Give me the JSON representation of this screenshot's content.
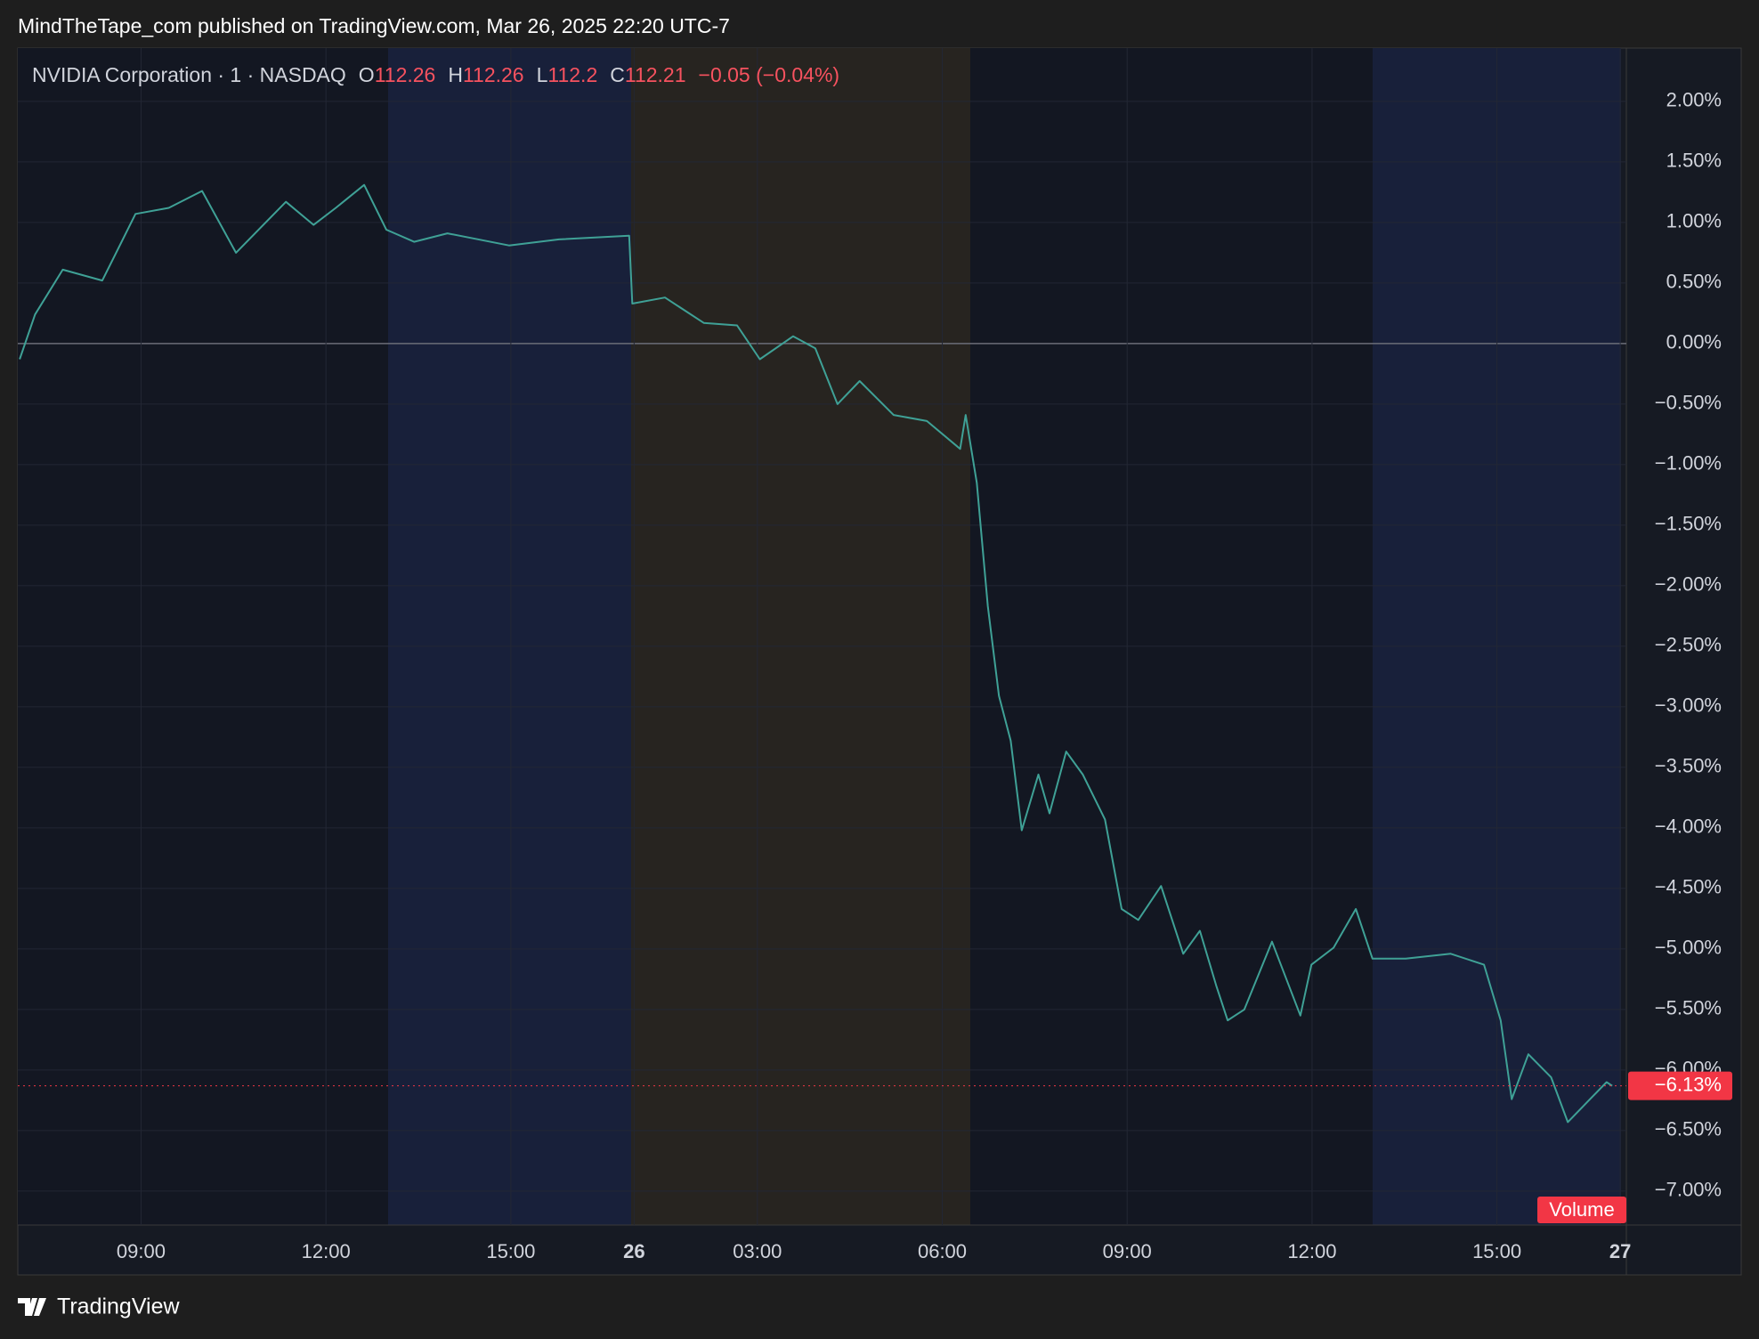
{
  "header": {
    "title": "MindTheTape_com published on TradingView.com, Mar 26, 2025 22:20 UTC-7"
  },
  "legend": {
    "symbol": "NVIDIA Corporation · 1 · NASDAQ",
    "ohlc": [
      {
        "key": "O",
        "value": 112.26
      },
      {
        "key": "H",
        "value": 112.26
      },
      {
        "key": "L",
        "value": 112.2
      },
      {
        "key": "C",
        "value": 112.21
      }
    ],
    "change": "−0.05 (−0.04%)"
  },
  "footer": {
    "brand": "TradingView"
  },
  "chart_data": {
    "type": "line",
    "color": "#3fa196",
    "x": [
      7.03,
      7.28,
      7.73,
      8.37,
      8.91,
      9.45,
      9.99,
      10.54,
      11.35,
      11.8,
      12.16,
      12.62,
      12.98,
      13.43,
      13.97,
      14.97,
      15.78,
      16.92,
      16.97,
      17.5,
      18.13,
      18.67,
      19.04,
      19.58,
      19.94,
      20.3,
      20.66,
      21.21,
      21.75,
      22.29,
      22.38,
      22.56,
      22.74,
      22.92,
      23.11,
      23.29,
      23.56,
      23.74,
      24.01,
      24.28,
      24.64,
      24.91,
      25.18,
      25.55,
      25.91,
      26.18,
      26.45,
      26.63,
      26.9,
      27.35,
      27.81,
      27.99,
      28.35,
      28.71,
      28.98,
      29.52,
      30.25,
      30.79,
      31.06,
      31.24,
      31.51,
      31.88,
      32.15,
      32.51,
      32.78,
      32.87
    ],
    "values": [
      -0.13,
      0.24,
      0.61,
      0.52,
      1.07,
      1.12,
      1.26,
      0.75,
      1.17,
      0.98,
      1.12,
      1.31,
      0.94,
      0.84,
      0.91,
      0.81,
      0.86,
      0.89,
      0.33,
      0.38,
      0.17,
      0.15,
      -0.13,
      0.06,
      -0.04,
      -0.5,
      -0.31,
      -0.59,
      -0.64,
      -0.87,
      -0.59,
      -1.15,
      -2.17,
      -2.91,
      -3.28,
      -4.02,
      -3.56,
      -3.88,
      -3.37,
      -3.56,
      -3.93,
      -4.67,
      -4.76,
      -4.48,
      -5.04,
      -4.85,
      -5.31,
      -5.59,
      -5.5,
      -4.94,
      -5.55,
      -5.13,
      -4.99,
      -4.67,
      -5.08,
      -5.08,
      -5.04,
      -5.13,
      -5.59,
      -6.24,
      -5.87,
      -6.06,
      -6.43,
      -6.24,
      -6.1,
      -6.13
    ],
    "xlim": [
      7,
      33.1
    ],
    "xticks": [
      {
        "value": 9,
        "label": "09:00"
      },
      {
        "value": 12,
        "label": "12:00"
      },
      {
        "value": 15,
        "label": "15:00"
      },
      {
        "value": 17,
        "label": "26"
      },
      {
        "value": 19,
        "label": "03:00"
      },
      {
        "value": 22,
        "label": "06:00"
      },
      {
        "value": 25,
        "label": "09:00"
      },
      {
        "value": 28,
        "label": "12:00"
      },
      {
        "value": 31,
        "label": "15:00"
      },
      {
        "value": 33,
        "label": "27"
      }
    ],
    "ylim": [
      -7.28,
      2.44
    ],
    "yticks": [
      {
        "value": 2,
        "label": "2.00%"
      },
      {
        "value": 1.5,
        "label": "1.50%"
      },
      {
        "value": 1,
        "label": "1.00%"
      },
      {
        "value": 0.5,
        "label": "0.50%"
      },
      {
        "value": 0,
        "label": "0.00%"
      },
      {
        "value": -0.5,
        "label": "−0.50%"
      },
      {
        "value": -1,
        "label": "−1.00%"
      },
      {
        "value": -1.5,
        "label": "−1.50%"
      },
      {
        "value": -2,
        "label": "−2.00%"
      },
      {
        "value": -2.5,
        "label": "−2.50%"
      },
      {
        "value": -3,
        "label": "−3.00%"
      },
      {
        "value": -3.5,
        "label": "−3.50%"
      },
      {
        "value": -4,
        "label": "−4.00%"
      },
      {
        "value": -4.5,
        "label": "−4.50%"
      },
      {
        "value": -5,
        "label": "−5.00%"
      },
      {
        "value": -5.5,
        "label": "−5.50%"
      },
      {
        "value": -6,
        "label": "−6.00%"
      },
      {
        "value": -6.5,
        "label": "−6.50%"
      },
      {
        "value": -7,
        "label": "−7.00%"
      }
    ],
    "grid": true,
    "last_value": {
      "value": -6.13,
      "label": "−6.13%"
    },
    "volume_label": "Volume"
  }
}
